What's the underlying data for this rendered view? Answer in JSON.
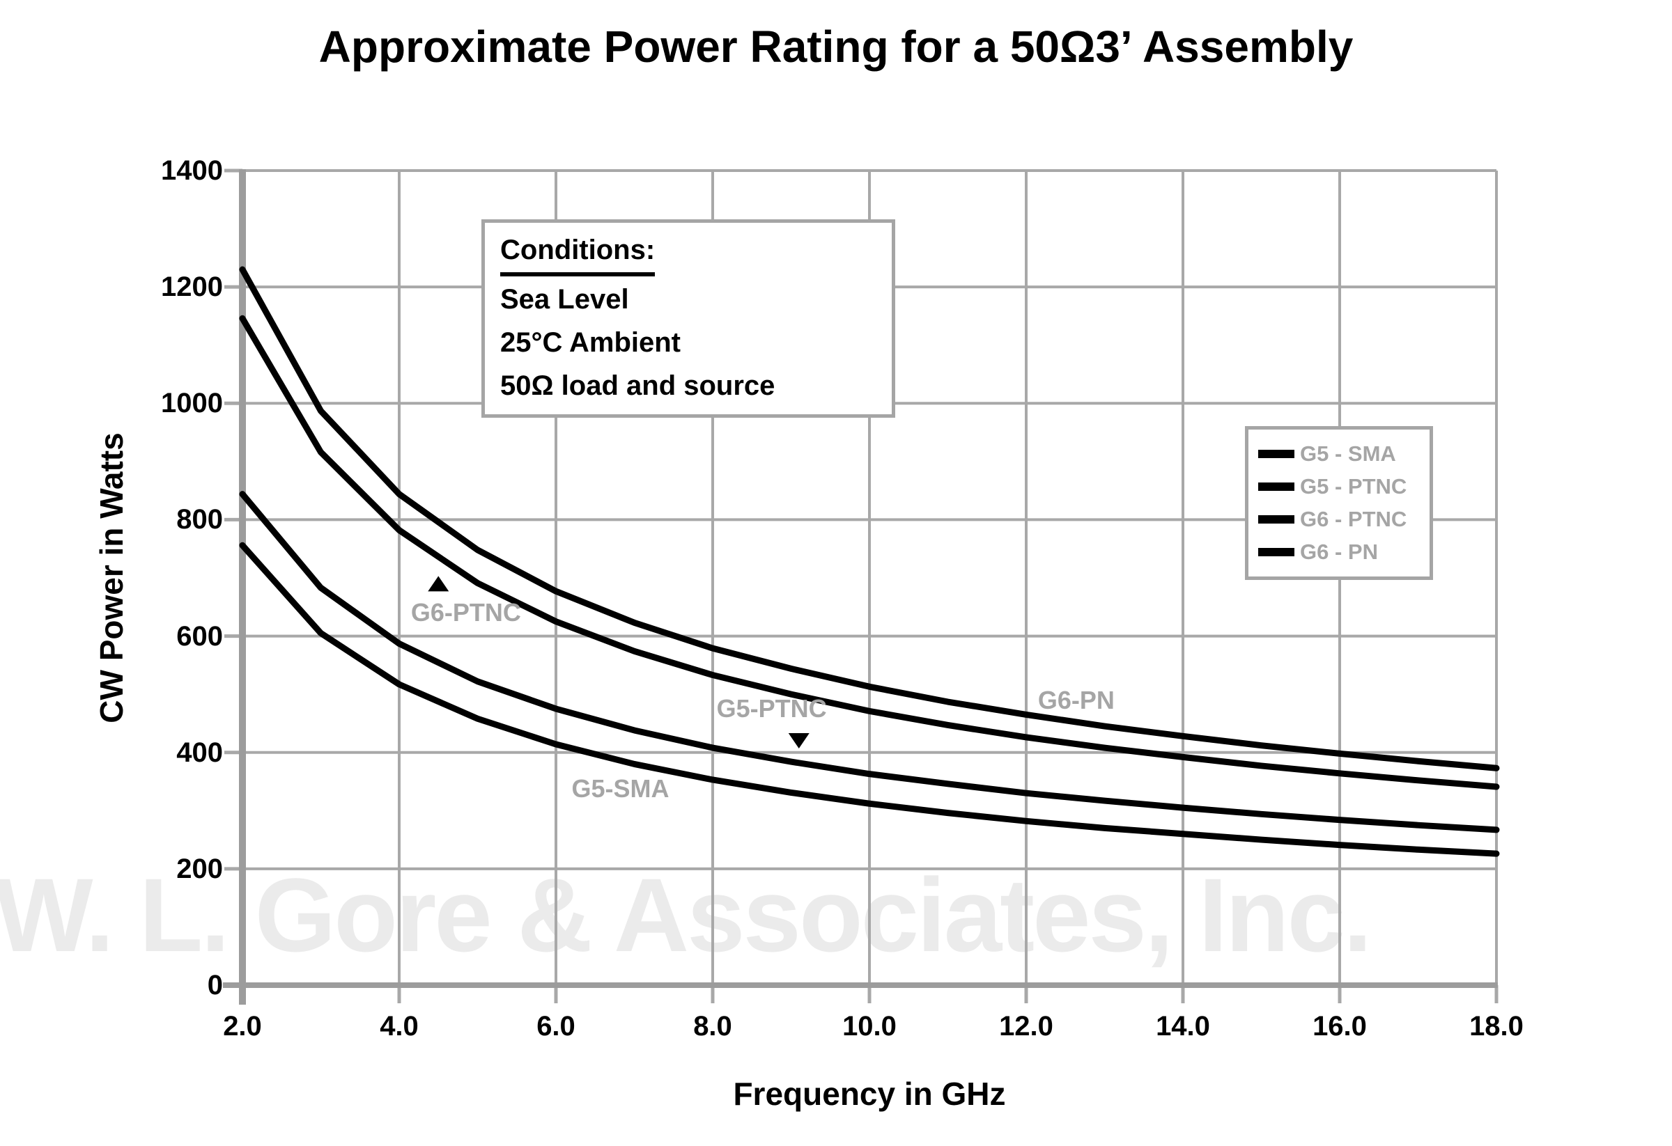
{
  "watermark": {
    "text": "W. L. Gore & Associates, Inc."
  },
  "conditions": {
    "heading": "Conditions:",
    "lines": [
      "Sea Level",
      "25°C Ambient",
      "50Ω load and source"
    ]
  },
  "legend": {
    "items": [
      "G5 - SMA",
      "G5 - PTNC",
      "G6 - PTNC",
      "G6 - PN"
    ]
  },
  "colors": {
    "curve": "#000000",
    "grid": "#a8a8a8",
    "axis": "#9c9c9c",
    "muted_text": "#a5a5a5",
    "watermark": "#ebebeb",
    "text": "#000000"
  },
  "chart_data": {
    "type": "line",
    "title": "Approximate Power Rating for a 50Ω3’ Assembly",
    "xlabel": "Frequency in GHz",
    "ylabel": "CW Power in Watts",
    "xlim": [
      2.0,
      18.0
    ],
    "ylim": [
      0,
      1400
    ],
    "grid": true,
    "legend_position": "right",
    "x_tick_labels": [
      "2.0",
      "4.0",
      "6.0",
      "8.0",
      "10.0",
      "12.0",
      "14.0",
      "16.0",
      "18.0"
    ],
    "y_tick_labels": [
      "0",
      "200",
      "400",
      "600",
      "800",
      "1000",
      "1200",
      "1400"
    ],
    "x": [
      2,
      3,
      4,
      5,
      6,
      7,
      8,
      9,
      10,
      11,
      12,
      13,
      14,
      15,
      16,
      17,
      18
    ],
    "series": [
      {
        "name": "G5 - SMA",
        "values": [
          756,
          605,
          517,
          458,
          414,
          380,
          353,
          331,
          312,
          296,
          282,
          270,
          260,
          250,
          241,
          233,
          226
        ]
      },
      {
        "name": "G5 - PTNC",
        "values": [
          844,
          683,
          587,
          522,
          475,
          438,
          408,
          384,
          363,
          346,
          330,
          317,
          305,
          294,
          284,
          275,
          267
        ]
      },
      {
        "name": "G6 - PTNC",
        "values": [
          1146,
          916,
          782,
          691,
          625,
          574,
          533,
          500,
          471,
          447,
          426,
          408,
          392,
          377,
          364,
          352,
          341
        ]
      },
      {
        "name": "G6 - PN",
        "values": [
          1230,
          987,
          844,
          748,
          677,
          623,
          579,
          544,
          513,
          487,
          465,
          445,
          428,
          412,
          398,
          385,
          373
        ]
      }
    ],
    "curve_labels": [
      {
        "text": "G6-PTNC",
        "x_ghz": 4.15,
        "y_watts": 665
      },
      {
        "text": "G5-SMA",
        "x_ghz": 6.2,
        "y_watts": 363
      },
      {
        "text": "G5-PTNC",
        "x_ghz": 8.05,
        "y_watts": 500
      },
      {
        "text": "G6-PN",
        "x_ghz": 12.15,
        "y_watts": 515
      }
    ],
    "markers": [
      {
        "shape": "triangle-up",
        "x_ghz": 4.5,
        "y_watts": 690
      },
      {
        "shape": "triangle-down",
        "x_ghz": 9.1,
        "y_watts": 420
      }
    ]
  }
}
